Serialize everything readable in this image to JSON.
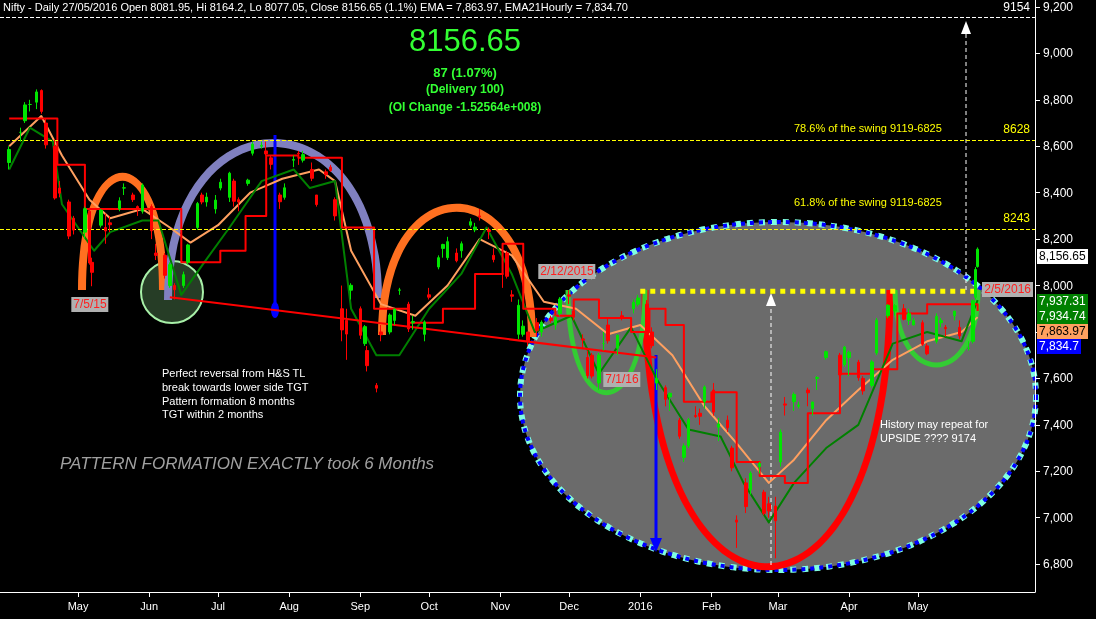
{
  "chart_data": {
    "type": "candlestick",
    "title": "Nifty - Daily 27/05/2016 Open 8081.95, Hi 8164.2, Lo 8077.05, Close 8156.65 (1.1%) EMA = 7,863.97, EMA21Hourly = 7,834.70",
    "xlim": [
      "2015-03-28",
      "2016-06-21"
    ],
    "xticks": [
      {
        "value": "2015-05-01",
        "label": "May"
      },
      {
        "value": "2015-06-01",
        "label": "Jun"
      },
      {
        "value": "2015-07-01",
        "label": "Jul"
      },
      {
        "value": "2015-08-01",
        "label": "Aug"
      },
      {
        "value": "2015-09-01",
        "label": "Sep"
      },
      {
        "value": "2015-10-01",
        "label": "Oct"
      },
      {
        "value": "2015-11-01",
        "label": "Nov"
      },
      {
        "value": "2015-12-01",
        "label": "Dec"
      },
      {
        "value": "2016-01-01",
        "label": "2016"
      },
      {
        "value": "2016-02-01",
        "label": "Feb"
      },
      {
        "value": "2016-03-01",
        "label": "Mar"
      },
      {
        "value": "2016-04-01",
        "label": "Apr"
      },
      {
        "value": "2016-05-01",
        "label": "May"
      }
    ],
    "ylim": [
      6680,
      9230
    ],
    "yticks": [
      {
        "value": 6800,
        "label": "6,800"
      },
      {
        "value": 7000,
        "label": "7,000"
      },
      {
        "value": 7200,
        "label": "7,200"
      },
      {
        "value": 7400,
        "label": "7,400"
      },
      {
        "value": 7600,
        "label": "7,600"
      },
      {
        "value": 7800,
        "label": null
      },
      {
        "value": 8000,
        "label": "8,000"
      },
      {
        "value": 8200,
        "label": "8,200"
      },
      {
        "value": 8400,
        "label": "8,400"
      },
      {
        "value": 8600,
        "label": "8,600"
      },
      {
        "value": 8800,
        "label": "8,800"
      },
      {
        "value": 9000,
        "label": "9,000"
      },
      {
        "value": 9200,
        "label": "9,200"
      }
    ],
    "marker": "none",
    "ref_lines": [
      {
        "axis": "y",
        "value": 9154,
        "label": "9154",
        "color": "#ffffff",
        "line_style": "dashed"
      },
      {
        "axis": "y",
        "value": 8628,
        "label": "8628",
        "color": "#ffff00",
        "line_style": "dashed"
      },
      {
        "axis": "y",
        "value": 8243,
        "label": "8243",
        "color": "#ffff00",
        "line_style": "dashed"
      }
    ],
    "series": [
      {
        "type": "candlestick",
        "x": [
          "2015-04-01",
          "2015-04-06",
          "2015-04-08",
          "2015-04-10",
          "2015-04-13",
          "2015-04-15",
          "2015-04-17",
          "2015-04-21",
          "2015-04-23",
          "2015-04-27",
          "2015-04-29",
          "2015-05-04",
          "2015-05-06",
          "2015-05-07",
          "2015-05-11",
          "2015-05-13",
          "2015-05-15",
          "2015-05-19",
          "2015-05-21",
          "2015-05-25",
          "2015-05-27",
          "2015-05-29",
          "2015-06-02",
          "2015-06-04",
          "2015-06-08",
          "2015-06-10",
          "2015-06-12",
          "2015-06-16",
          "2015-06-18",
          "2015-06-22",
          "2015-06-24",
          "2015-06-26",
          "2015-06-30",
          "2015-07-02",
          "2015-07-06",
          "2015-07-08",
          "2015-07-10",
          "2015-07-14",
          "2015-07-16",
          "2015-07-20",
          "2015-07-22",
          "2015-07-24",
          "2015-07-28",
          "2015-07-30",
          "2015-08-03",
          "2015-08-05",
          "2015-08-07",
          "2015-08-11",
          "2015-08-13",
          "2015-08-17",
          "2015-08-19",
          "2015-08-21",
          "2015-08-24",
          "2015-08-26",
          "2015-08-28",
          "2015-09-01",
          "2015-09-03",
          "2015-09-04",
          "2015-09-08",
          "2015-09-10",
          "2015-09-14",
          "2015-09-16",
          "2015-09-18",
          "2015-09-22",
          "2015-09-24",
          "2015-09-29",
          "2015-10-01",
          "2015-10-05",
          "2015-10-07",
          "2015-10-09",
          "2015-10-13",
          "2015-10-15",
          "2015-10-19",
          "2015-10-21",
          "2015-10-23",
          "2015-10-27",
          "2015-10-29",
          "2015-11-02",
          "2015-11-04",
          "2015-11-06",
          "2015-11-09",
          "2015-11-11",
          "2015-11-13",
          "2015-11-17",
          "2015-11-19",
          "2015-11-23",
          "2015-11-25",
          "2015-11-27",
          "2015-12-01",
          "2015-12-03",
          "2015-12-07",
          "2015-12-09",
          "2015-12-11",
          "2015-12-14",
          "2015-12-16",
          "2015-12-18",
          "2015-12-22",
          "2015-12-24",
          "2015-12-29",
          "2015-12-31",
          "2016-01-04",
          "2016-01-06",
          "2016-01-08",
          "2016-01-12",
          "2016-01-14",
          "2016-01-18",
          "2016-01-20",
          "2016-01-22",
          "2016-01-25",
          "2016-01-27",
          "2016-01-29",
          "2016-02-02",
          "2016-02-04",
          "2016-02-08",
          "2016-02-10",
          "2016-02-12",
          "2016-02-16",
          "2016-02-18",
          "2016-02-22",
          "2016-02-24",
          "2016-02-26",
          "2016-02-29",
          "2016-03-02",
          "2016-03-04",
          "2016-03-08",
          "2016-03-10",
          "2016-03-14",
          "2016-03-16",
          "2016-03-18",
          "2016-03-22",
          "2016-03-28",
          "2016-03-30",
          "2016-04-01",
          "2016-04-05",
          "2016-04-07",
          "2016-04-11",
          "2016-04-13",
          "2016-04-18",
          "2016-04-21",
          "2016-04-25",
          "2016-04-27",
          "2016-04-29",
          "2016-05-03",
          "2016-05-05",
          "2016-05-09",
          "2016-05-11",
          "2016-05-13",
          "2016-05-17",
          "2016-05-19",
          "2016-05-23",
          "2016-05-25",
          "2016-05-26",
          "2016-05-27"
        ],
        "ohlc": [
          [
            8530,
            8600,
            8500,
            8586
          ],
          [
            8660,
            8680,
            8620,
            8660
          ],
          [
            8710,
            8790,
            8700,
            8778
          ],
          [
            8780,
            8800,
            8750,
            8780
          ],
          [
            8790,
            8845,
            8760,
            8834
          ],
          [
            8840,
            8845,
            8740,
            8750
          ],
          [
            8700,
            8720,
            8590,
            8606
          ],
          [
            8600,
            8630,
            8370,
            8377
          ],
          [
            8420,
            8450,
            8380,
            8398
          ],
          [
            8360,
            8370,
            8200,
            8213
          ],
          [
            8290,
            8300,
            8220,
            8239
          ],
          [
            8230,
            8340,
            8200,
            8331
          ],
          [
            8320,
            8330,
            8090,
            8097
          ],
          [
            8100,
            8120,
            7997,
            8057
          ],
          [
            8260,
            8330,
            8250,
            8325
          ],
          [
            8250,
            8310,
            8180,
            8235
          ],
          [
            8270,
            8300,
            8230,
            8262
          ],
          [
            8330,
            8380,
            8320,
            8365
          ],
          [
            8420,
            8440,
            8390,
            8421
          ],
          [
            8390,
            8400,
            8360,
            8370
          ],
          [
            8340,
            8345,
            8300,
            8334
          ],
          [
            8320,
            8440,
            8310,
            8433
          ],
          [
            8340,
            8350,
            8200,
            8236
          ],
          [
            8140,
            8180,
            8110,
            8130
          ],
          [
            8130,
            8140,
            8030,
            8044
          ],
          [
            8000,
            8100,
            7990,
            8090
          ],
          [
            8000,
            8010,
            7940,
            7982
          ],
          [
            8000,
            8060,
            7990,
            8047
          ],
          [
            8100,
            8180,
            8090,
            8175
          ],
          [
            8250,
            8360,
            8240,
            8353
          ],
          [
            8390,
            8400,
            8350,
            8360
          ],
          [
            8360,
            8400,
            8340,
            8381
          ],
          [
            8330,
            8390,
            8310,
            8368
          ],
          [
            8420,
            8460,
            8410,
            8445
          ],
          [
            8380,
            8490,
            8360,
            8484
          ],
          [
            8450,
            8460,
            8340,
            8363
          ],
          [
            8370,
            8380,
            8320,
            8360
          ],
          [
            8440,
            8460,
            8430,
            8454
          ],
          [
            8570,
            8620,
            8560,
            8609
          ],
          [
            8600,
            8620,
            8590,
            8604
          ],
          [
            8580,
            8620,
            8560,
            8567
          ],
          [
            8550,
            8560,
            8500,
            8522
          ],
          [
            8390,
            8400,
            8330,
            8361
          ],
          [
            8380,
            8440,
            8370,
            8421
          ],
          [
            8540,
            8560,
            8510,
            8543
          ],
          [
            8570,
            8580,
            8520,
            8567
          ],
          [
            8540,
            8580,
            8530,
            8564
          ],
          [
            8500,
            8530,
            8450,
            8462
          ],
          [
            8390,
            8390,
            8340,
            8349
          ],
          [
            8490,
            8500,
            8460,
            8477
          ],
          [
            8510,
            8520,
            8490,
            8495
          ],
          [
            8370,
            8380,
            8280,
            8300
          ],
          [
            7900,
            8000,
            7760,
            7809
          ],
          [
            7850,
            7900,
            7680,
            7791
          ],
          [
            7980,
            8010,
            7940,
            8001
          ],
          [
            7900,
            7910,
            7770,
            7786
          ],
          [
            7750,
            7830,
            7740,
            7823
          ],
          [
            7720,
            7740,
            7630,
            7655
          ],
          [
            7570,
            7580,
            7540,
            7558
          ],
          [
            7800,
            7830,
            7760,
            7788
          ],
          [
            7800,
            7880,
            7790,
            7873
          ],
          [
            7850,
            7900,
            7830,
            7899
          ],
          [
            7980,
            7990,
            7960,
            7981
          ],
          [
            7920,
            7930,
            7800,
            7813
          ],
          [
            7840,
            7870,
            7810,
            7845
          ],
          [
            7790,
            7850,
            7760,
            7843
          ],
          [
            7960,
            7990,
            7940,
            7950
          ],
          [
            8080,
            8130,
            8070,
            8120
          ],
          [
            8160,
            8180,
            8120,
            8177
          ],
          [
            8120,
            8210,
            8110,
            8189
          ],
          [
            8140,
            8160,
            8100,
            8107
          ],
          [
            8150,
            8190,
            8120,
            8180
          ],
          [
            8260,
            8290,
            8250,
            8275
          ],
          [
            8240,
            8270,
            8230,
            8252
          ],
          [
            8300,
            8330,
            8280,
            8295
          ],
          [
            8240,
            8250,
            8200,
            8233
          ],
          [
            8130,
            8160,
            8100,
            8112
          ],
          [
            8050,
            8060,
            7990,
            8050
          ],
          [
            8140,
            8150,
            8030,
            8040
          ],
          [
            7960,
            7980,
            7930,
            7954
          ],
          [
            7790,
            7940,
            7770,
            7915
          ],
          [
            7790,
            7850,
            7780,
            7825
          ],
          [
            7800,
            7800,
            7740,
            7762
          ],
          [
            7840,
            7860,
            7780,
            7807
          ],
          [
            7800,
            7850,
            7780,
            7842
          ],
          [
            7860,
            7870,
            7840,
            7849
          ],
          [
            7830,
            7870,
            7810,
            7861
          ],
          [
            7880,
            7950,
            7870,
            7942
          ],
          [
            7960,
            7980,
            7920,
            7954
          ],
          [
            7890,
            7900,
            7850,
            7864
          ],
          [
            7770,
            7790,
            7730,
            7765
          ],
          [
            7690,
            7720,
            7600,
            7612
          ],
          [
            7700,
            7710,
            7600,
            7610
          ],
          [
            7580,
            7710,
            7550,
            7700
          ],
          [
            7750,
            7800,
            7720,
            7750
          ],
          [
            7830,
            7860,
            7750,
            7762
          ],
          [
            7730,
            7790,
            7700,
            7786
          ],
          [
            7870,
            7890,
            7850,
            7861
          ],
          [
            7900,
            7940,
            7880,
            7928
          ],
          [
            7920,
            7960,
            7910,
            7946
          ],
          [
            7920,
            7937,
            7780,
            7791
          ],
          [
            7800,
            7820,
            7730,
            7741
          ],
          [
            7580,
            7640,
            7550,
            7601
          ],
          [
            7560,
            7570,
            7480,
            7510
          ],
          [
            7520,
            7540,
            7460,
            7536
          ],
          [
            7420,
            7430,
            7340,
            7351
          ],
          [
            7260,
            7320,
            7240,
            7309
          ],
          [
            7310,
            7430,
            7300,
            7422
          ],
          [
            7440,
            7480,
            7430,
            7436
          ],
          [
            7450,
            7470,
            7400,
            7437
          ],
          [
            7500,
            7570,
            7470,
            7563
          ],
          [
            7550,
            7580,
            7440,
            7455
          ],
          [
            7390,
            7430,
            7330,
            7404
          ],
          [
            7420,
            7440,
            7370,
            7387
          ],
          [
            7300,
            7310,
            7200,
            7215
          ],
          [
            6990,
            7010,
            6870,
            6981
          ],
          [
            7150,
            7170,
            7020,
            7048
          ],
          [
            7120,
            7200,
            7100,
            7191
          ],
          [
            7220,
            7240,
            7190,
            7234
          ],
          [
            7110,
            7120,
            7010,
            7019
          ],
          [
            7060,
            7090,
            7000,
            7029
          ],
          [
            7050,
            7090,
            6825,
            6987
          ],
          [
            7240,
            7380,
            7220,
            7368
          ],
          [
            7490,
            7520,
            7440,
            7485
          ],
          [
            7500,
            7540,
            7460,
            7531
          ],
          [
            7480,
            7500,
            7470,
            7486
          ],
          [
            7550,
            7560,
            7480,
            7538
          ],
          [
            7470,
            7500,
            7440,
            7498
          ],
          [
            7600,
            7610,
            7550,
            7604
          ],
          [
            7690,
            7720,
            7680,
            7715
          ],
          [
            7700,
            7710,
            7590,
            7615
          ],
          [
            7660,
            7740,
            7650,
            7735
          ],
          [
            7690,
            7720,
            7610,
            7713
          ],
          [
            7670,
            7680,
            7590,
            7603
          ],
          [
            7600,
            7610,
            7530,
            7546
          ],
          [
            7570,
            7680,
            7560,
            7671
          ],
          [
            7710,
            7860,
            7700,
            7850
          ],
          [
            7870,
            7920,
            7860,
            7915
          ],
          [
            7890,
            7920,
            7870,
            7913
          ],
          [
            7900,
            7920,
            7850,
            7855
          ],
          [
            7850,
            7900,
            7830,
            7880
          ],
          [
            7830,
            7860,
            7830,
            7849
          ],
          [
            7840,
            7850,
            7740,
            7747
          ],
          [
            7740,
            7750,
            7700,
            7706
          ],
          [
            7760,
            7880,
            7750,
            7867
          ],
          [
            7840,
            7860,
            7820,
            7849
          ],
          [
            7820,
            7830,
            7780,
            7814
          ],
          [
            7870,
            7890,
            7850,
            7890
          ],
          [
            7820,
            7850,
            7770,
            7783
          ],
          [
            7730,
            7760,
            7720,
            7731
          ],
          [
            7760,
            7940,
            7750,
            7935
          ],
          [
            7950,
            8080,
            7940,
            8069
          ],
          [
            8081.95,
            8164.2,
            8077.05,
            8156.65
          ]
        ]
      },
      {
        "type": "line",
        "color": "#ffa060",
        "x": [
          "2015-04-01",
          "2015-04-15",
          "2015-04-24",
          "2015-05-06",
          "2015-05-15",
          "2015-05-29",
          "2015-06-10",
          "2015-06-19",
          "2015-07-01",
          "2015-07-15",
          "2015-07-29",
          "2015-08-14",
          "2015-08-21",
          "2015-08-28",
          "2015-09-10",
          "2015-09-25",
          "2015-10-09",
          "2015-10-23",
          "2015-11-06",
          "2015-11-20",
          "2015-12-04",
          "2015-12-18",
          "2016-01-01",
          "2016-01-15",
          "2016-01-29",
          "2016-02-12",
          "2016-02-26",
          "2016-03-08",
          "2016-03-22",
          "2016-04-05",
          "2016-04-20",
          "2016-05-05",
          "2016-05-20",
          "2016-05-27"
        ],
        "values": [
          8600,
          8730,
          8560,
          8370,
          8290,
          8330,
          8250,
          8185,
          8260,
          8400,
          8460,
          8500,
          8450,
          8150,
          7920,
          7870,
          8000,
          8200,
          8130,
          7930,
          7900,
          7790,
          7830,
          7700,
          7480,
          7320,
          7150,
          7250,
          7420,
          7550,
          7680,
          7760,
          7800,
          7864
        ]
      },
      {
        "type": "line",
        "color": "#008000",
        "x": [
          "2015-04-01",
          "2015-04-10",
          "2015-04-20",
          "2015-04-24",
          "2015-05-08",
          "2015-05-15",
          "2015-05-29",
          "2015-06-05",
          "2015-06-15",
          "2015-06-25",
          "2015-07-06",
          "2015-07-20",
          "2015-08-03",
          "2015-08-10",
          "2015-08-21",
          "2015-08-28",
          "2015-09-08",
          "2015-09-18",
          "2015-10-01",
          "2015-10-15",
          "2015-10-26",
          "2015-11-06",
          "2015-11-16",
          "2015-12-02",
          "2015-12-14",
          "2015-12-28",
          "2016-01-08",
          "2016-01-22",
          "2016-02-05",
          "2016-02-15",
          "2016-02-26",
          "2016-03-08",
          "2016-03-22",
          "2016-04-05",
          "2016-04-20",
          "2016-05-05",
          "2016-05-20",
          "2016-05-27"
        ],
        "values": [
          8500,
          8680,
          8620,
          8350,
          8150,
          8230,
          8280,
          8280,
          7960,
          8100,
          8250,
          8450,
          8500,
          8420,
          8450,
          7900,
          7700,
          7700,
          7900,
          8050,
          8250,
          8050,
          7800,
          7870,
          7620,
          7820,
          7600,
          7380,
          7350,
          7150,
          6980,
          7150,
          7300,
          7400,
          7750,
          7800,
          7760,
          7937
        ]
      },
      {
        "type": "step",
        "color": "#ff0000",
        "x": [
          "2015-04-01",
          "2015-04-22",
          "2015-05-04",
          "2015-06-05",
          "2015-06-15",
          "2015-07-02",
          "2015-07-13",
          "2015-07-22",
          "2015-08-05",
          "2015-08-24",
          "2015-09-07",
          "2015-09-22",
          "2015-10-07",
          "2015-10-21",
          "2015-11-02",
          "2015-11-11",
          "2015-11-25",
          "2015-12-03",
          "2015-12-14",
          "2015-12-28",
          "2016-01-05",
          "2016-01-12",
          "2016-01-20",
          "2016-02-01",
          "2016-02-12",
          "2016-02-22",
          "2016-03-04",
          "2016-03-14",
          "2016-03-28",
          "2016-04-11",
          "2016-04-22",
          "2016-05-05",
          "2016-05-27"
        ],
        "values": [
          8720,
          8520,
          8330,
          8330,
          8100,
          8150,
          8300,
          8560,
          8550,
          8250,
          7900,
          7840,
          7900,
          8050,
          8180,
          7900,
          7870,
          7940,
          7860,
          7800,
          7900,
          7830,
          7500,
          7540,
          7240,
          7180,
          7150,
          7450,
          7620,
          7640,
          7880,
          7920,
          7890
        ]
      },
      {
        "type": "line",
        "color": "#ff0000",
        "x": [
          "2015-06-10",
          "2016-01-08"
        ],
        "values": [
          7950,
          7690
        ]
      },
      {
        "type": "line",
        "color": "#ffff00",
        "line_style": "dotted",
        "x": [
          "2016-01-01",
          "2016-05-26"
        ],
        "values": [
          7975,
          7975
        ]
      }
    ],
    "annotations": [
      "8156.65",
      "87 (1.07%)",
      "(Delivery 100)",
      "(OI Change -1.52564e+008)",
      "78.6% of the swing 9119-6825",
      "61.8% of the swing 9119-6825",
      "Perfect reversal from H&S TL\nbreak towards lower side TGT\nPattern formation 8 months\nTGT within 2 months",
      "PATTERN FORMATION EXACTLY took 6 Months",
      "History may repeat for\nUPSIDE ???? 9174",
      "7/5/15",
      "2/12/2015",
      "7/1/16",
      {
        "text": "2/5/2016",
        "x": "2016-05-26",
        "y": 7975
      },
      "8,156.65",
      "7,937.31",
      "7,934.74",
      "7,863.97",
      "7,834.7"
    ]
  }
}
